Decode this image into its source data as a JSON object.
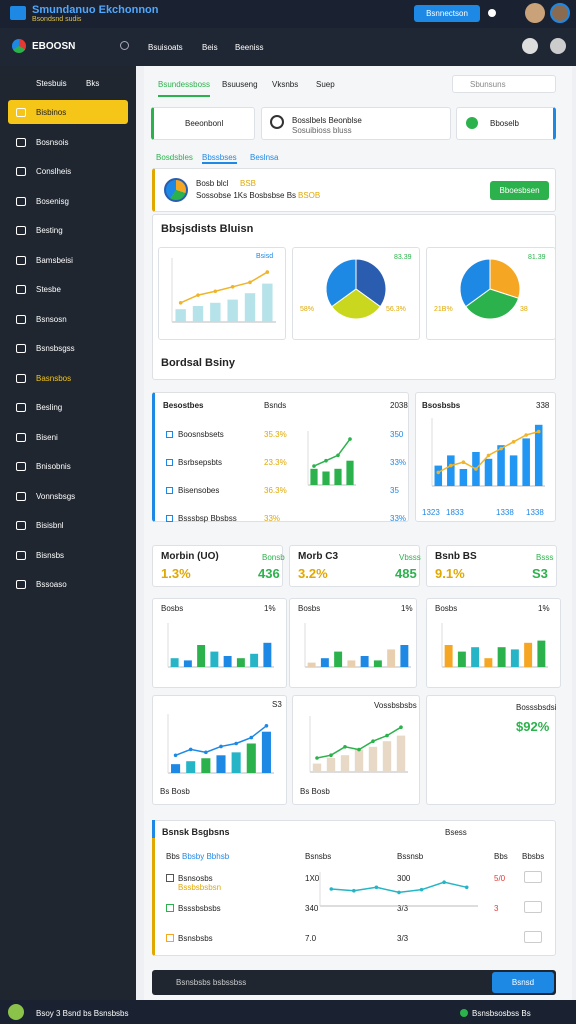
{
  "header": {
    "title": "Smundanuo Ekchonnon",
    "subtitle": "Bsondsnd sudis",
    "button": "Bsnnectson"
  },
  "nav": {
    "brand": "EBOOSN",
    "tabs": [
      "Bsuisoats",
      "Beis",
      "Beeniss"
    ]
  },
  "sidebar": {
    "title": "Stesbuis",
    "badge": "Bks",
    "active": 0,
    "highlight": 9,
    "items": [
      "Bisbinos",
      "Bosnsois",
      "Conslheis",
      "Bosenisg",
      "Besting",
      "Bamsbeisi",
      "Stesbe",
      "Bsnsosn",
      "Bsnsbsgss",
      "Basnsbos",
      "Besling",
      "Biseni",
      "Bnisobnis",
      "Vonnsbsgs",
      "Bisisbnl",
      "Bisnsbs",
      "Bssoaso"
    ]
  },
  "tabs": [
    "Bsundessboss",
    "Bsuuseng",
    "Vksnbs",
    "Suep"
  ],
  "search": "Sbunsuns",
  "selectors": [
    "Beeonbonl",
    "Bosslbels Beonblse",
    "Sosuibioss bluss",
    "Bboselb"
  ],
  "subtabs": [
    "Bosdsbles",
    "Bbssbses",
    "Beslnsa"
  ],
  "banner": {
    "title": "Bosb blcl",
    "tag": "BSB",
    "text": "Sossobse 1Ks Bosbsbse Bs",
    "highlight": "BSOB",
    "button": "Bboesbsen"
  },
  "section1": {
    "title": "Bbsjsdists Bluisn"
  },
  "section2": {
    "title": "Bordsal Bsiny"
  },
  "breakdown": {
    "title": "Besostbes",
    "head": "Bsnds",
    "year": "2038",
    "rows": [
      [
        "Boosnsbsets",
        "35.3%",
        "350"
      ],
      [
        "Bsrbsepsbts",
        "23.3%",
        "33%"
      ],
      [
        "Bisensobes",
        "36.3%",
        "35"
      ],
      [
        "Bsssbsp Bbsbss",
        "33%",
        "33%"
      ]
    ]
  },
  "trend": {
    "title": "Bsosbsbs",
    "value": "338",
    "xlabels": [
      "1323",
      "1833",
      "1338",
      "1338"
    ]
  },
  "kpis": [
    {
      "label": "Morbin (UO)",
      "tag": "Bonsb",
      "value": "1.3%",
      "count": "436"
    },
    {
      "label": "Morb C3",
      "tag": "Vbsss",
      "value": "3.2%",
      "count": "485"
    },
    {
      "label": "Bsnb BS",
      "tag": "Bsss",
      "value": "9.1%",
      "count": "S3"
    }
  ],
  "minis": [
    {
      "title": "Bosbs",
      "value": "1%"
    },
    {
      "title": "Bosbs",
      "value": "1%"
    },
    {
      "title": "Bosbs",
      "value": "1%"
    }
  ],
  "combos": [
    {
      "value": "S3",
      "foot": "Bs Bosb"
    },
    {
      "title": "Vossbsbsbs",
      "foot": "Bs Bosb"
    }
  ],
  "bigkpi": {
    "label": "Bosssbsdsi",
    "value": "$92%"
  },
  "table": {
    "title": "Bsnsk Bsgbsns",
    "search": "Bsess",
    "head": [
      "Bbs",
      "Bbsby Bbhsb",
      "Bsnsbs",
      "Bssnsb",
      "Bbs",
      "Bbsbs"
    ],
    "rows": [
      [
        "Bsnsosbs",
        "Bssbsbsbsn",
        "1X0",
        "300",
        "5/0"
      ],
      [
        "Bsssbsbsbs",
        "340",
        "3/3",
        "3"
      ],
      [
        "Bsnsbsbs",
        "7.0",
        "3/3"
      ]
    ]
  },
  "input": {
    "placeholder": "Bsnsbsbs bsbssbss",
    "button": "Bsnsd"
  },
  "status": {
    "left": "Bsoy 3 Bsnd bs Bsnsbsbs",
    "right": "Bsnsbsosbss Bs"
  },
  "charts": [
    {
      "type": "bar",
      "ylim": [
        0,
        100
      ],
      "values": [
        20,
        25,
        30,
        35,
        45,
        60
      ],
      "color": "#b6e3ea",
      "line": [
        30,
        42,
        48,
        55,
        62,
        78
      ],
      "line_color": "#f0b429",
      "label": "Bsisd"
    },
    {
      "type": "pie",
      "values": [
        35,
        30,
        35
      ],
      "colors": [
        "#2a5db0",
        "#c9d81e",
        "#1e88e5"
      ],
      "labels": [
        "83.39",
        "58%",
        "56.3%"
      ]
    },
    {
      "type": "pie",
      "values": [
        30,
        35,
        35
      ],
      "colors": [
        "#f5a623",
        "#2bb24c",
        "#1e88e5"
      ],
      "labels": [
        "81.39",
        "21B%",
        "38"
      ]
    },
    {
      "type": "bar",
      "ylim": [
        0,
        100
      ],
      "values": [
        30,
        25,
        30,
        45
      ],
      "color": "#2bb24c",
      "line": [
        35,
        45,
        55,
        85
      ],
      "line_color": "#2bb24c"
    },
    {
      "type": "bar",
      "ylim": [
        0,
        100
      ],
      "values": [
        30,
        45,
        25,
        50,
        40,
        60,
        45,
        70,
        90
      ],
      "color": "#2196f3",
      "line": [
        20,
        30,
        35,
        25,
        45,
        55,
        65,
        75,
        80
      ],
      "line_color": "#f0b429"
    },
    {
      "type": "bar",
      "ylim": [
        0,
        100
      ],
      "values": [
        20,
        15,
        50,
        35,
        25,
        20,
        30,
        55
      ],
      "colors": [
        "#26b5c6",
        "#1e88e5",
        "#2bb24c"
      ]
    },
    {
      "type": "bar",
      "ylim": [
        0,
        100
      ],
      "values": [
        10,
        20,
        35,
        15,
        25,
        15,
        40,
        50
      ],
      "colors": [
        "#e8cfb0",
        "#1e88e5",
        "#2bb24c"
      ]
    },
    {
      "type": "bar",
      "ylim": [
        0,
        100
      ],
      "values": [
        50,
        35,
        45,
        20,
        45,
        40,
        55,
        60
      ],
      "colors": [
        "#f5a623",
        "#2bb24c",
        "#26b5c6"
      ]
    },
    {
      "type": "bar",
      "ylim": [
        0,
        100
      ],
      "values": [
        15,
        20,
        25,
        30,
        35,
        50,
        70
      ],
      "colors": [
        "#1e88e5",
        "#26b5c6",
        "#2bb24c"
      ],
      "line": [
        30,
        40,
        35,
        45,
        50,
        60,
        80
      ],
      "line_color": "#1e88e5"
    },
    {
      "type": "bar",
      "ylim": [
        0,
        100
      ],
      "values": [
        15,
        25,
        30,
        40,
        45,
        55,
        65
      ],
      "color": "#e8d9c6",
      "line": [
        25,
        30,
        45,
        40,
        55,
        65,
        80
      ],
      "line_color": "#2bb24c"
    },
    {
      "type": "line",
      "ylim": [
        0,
        100
      ],
      "values": [
        50,
        45,
        55,
        40,
        48,
        70,
        55
      ],
      "line_color": "#26b5c6"
    }
  ]
}
